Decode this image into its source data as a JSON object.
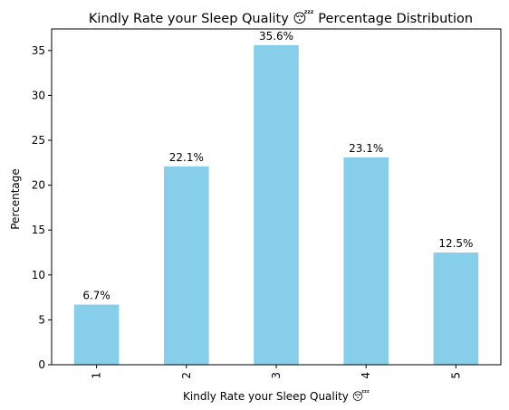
{
  "chart_data": {
    "type": "bar",
    "title": "Kindly Rate your Sleep Quality 😴 Percentage Distribution",
    "xlabel": "Kindly Rate your Sleep Quality 😴",
    "ylabel": "Percentage",
    "categories": [
      "1",
      "2",
      "3",
      "4",
      "5"
    ],
    "values": [
      6.7,
      22.1,
      35.6,
      23.1,
      12.5
    ],
    "data_labels": [
      "6.7%",
      "22.1%",
      "35.6%",
      "23.1%",
      "12.5%"
    ],
    "ylim": [
      0,
      37.4
    ],
    "yticks": [
      0,
      5,
      10,
      15,
      20,
      25,
      30,
      35
    ],
    "bar_color": "#87CEEB",
    "grid": false,
    "legend": "none"
  }
}
